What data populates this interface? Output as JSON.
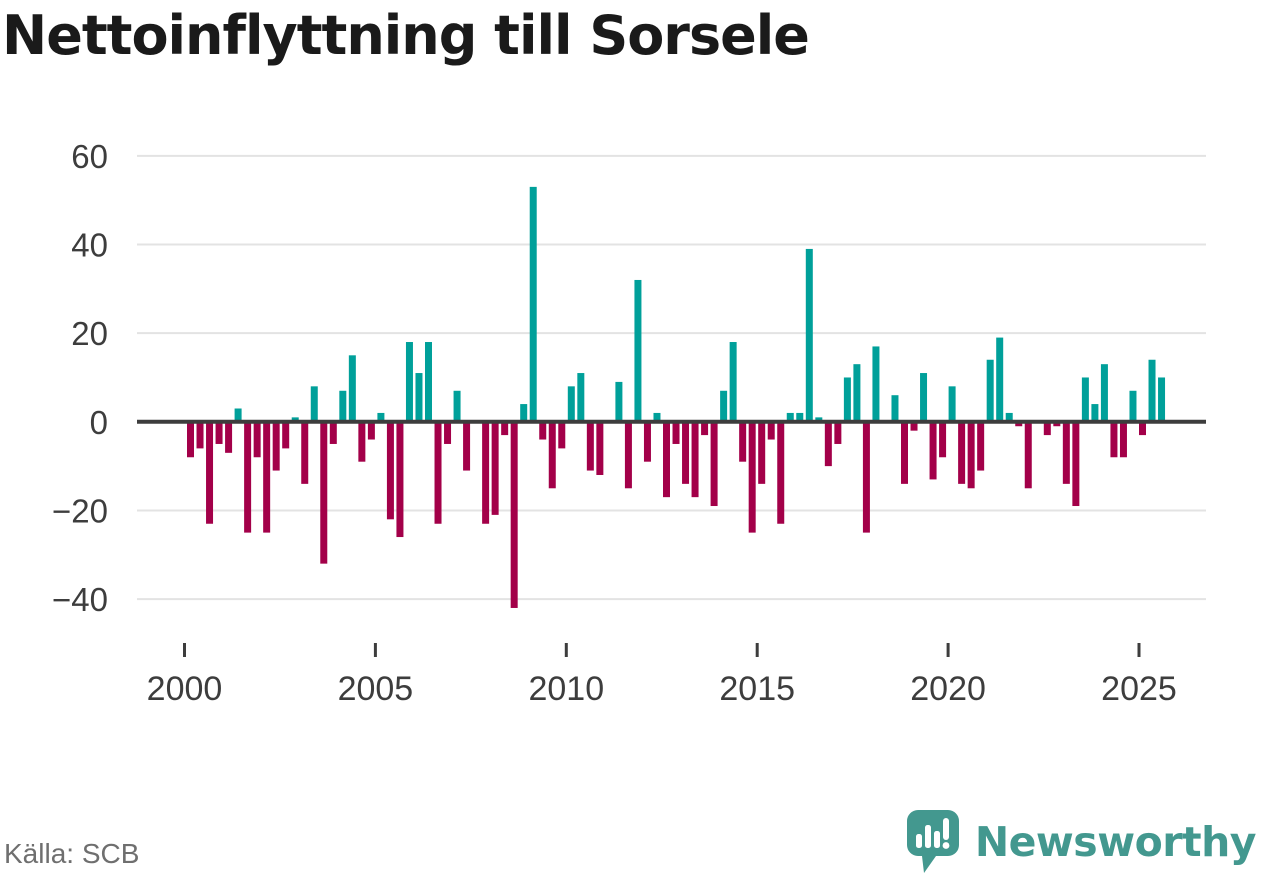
{
  "title": "Nettoinflyttning till Sorsele",
  "source": "Källa: SCB",
  "branding": {
    "name": "Newsworthy",
    "icon": "speech-bubble-bar-chart-icon",
    "color": "#43988f"
  },
  "chart_data": {
    "type": "bar",
    "title": "Nettoinflyttning till Sorsele",
    "frequency": "quarterly",
    "start_period": "2000 Q1",
    "end_period": "2025 Q3",
    "grid": "horizontal",
    "legend": "none",
    "yticks": [
      60,
      40,
      20,
      0,
      -20,
      -40
    ],
    "ylim": [
      -46,
      62
    ],
    "x_tick_labels": [
      "2000",
      "2005",
      "2010",
      "2015",
      "2020",
      "2025"
    ],
    "positive_color": "#00a09a",
    "negative_color": "#a30049",
    "values": [
      -8,
      -6,
      -23,
      -5,
      -7,
      3,
      -25,
      -8,
      -25,
      -11,
      -6,
      1,
      -14,
      8,
      -32,
      -5,
      7,
      15,
      -9,
      -4,
      2,
      -22,
      -26,
      18,
      11,
      18,
      -23,
      -5,
      7,
      -11,
      0,
      -23,
      -21,
      -3,
      -42,
      4,
      53,
      -4,
      -15,
      -6,
      8,
      11,
      -11,
      -12,
      0,
      9,
      -15,
      32,
      -9,
      2,
      -17,
      -5,
      -14,
      -17,
      -3,
      -19,
      7,
      18,
      -9,
      -25,
      -14,
      -4,
      -23,
      2,
      2,
      39,
      1,
      -10,
      -5,
      10,
      13,
      -25,
      17,
      0,
      6,
      -14,
      -2,
      11,
      -13,
      -8,
      8,
      -14,
      -15,
      -11,
      14,
      19,
      2,
      -1,
      -15,
      0,
      -3,
      -1,
      -14,
      -19,
      10,
      4,
      13,
      -8,
      -8,
      7,
      -3,
      14,
      10
    ]
  }
}
